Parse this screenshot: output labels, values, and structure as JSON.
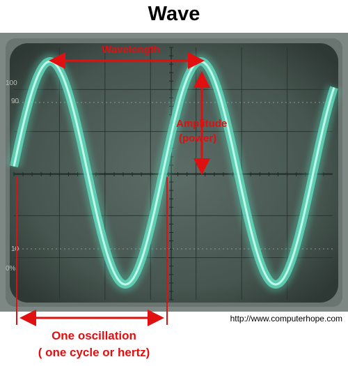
{
  "title": "Wave",
  "labels": {
    "wavelength": "Wavelength",
    "amplitude_line1": "Amplitude",
    "amplitude_line2": "(power)",
    "oscillation_line1": "One oscillation",
    "oscillation_line2": "( one cycle or hertz)"
  },
  "scale_marks": [
    "100",
    "90",
    "10",
    "0%"
  ],
  "source": "http://www.computerhope.com",
  "colors": {
    "annotation": "#e01010",
    "trace": "#6ff0d2",
    "screen": "#4a5a55",
    "bezel": "#7a8480"
  }
}
